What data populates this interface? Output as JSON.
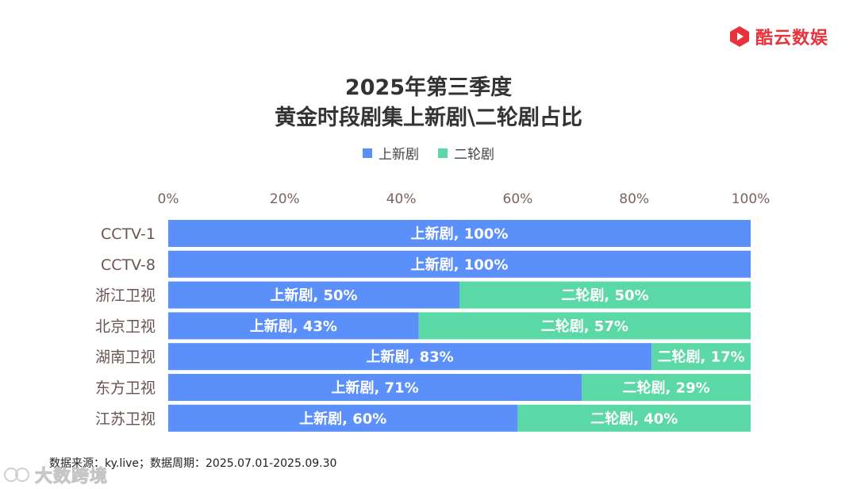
{
  "brand": {
    "name": "酷云数娱",
    "color": "#e8333c"
  },
  "title_line1": "2025年第三季度",
  "title_line2": "黄金时段剧集上新剧\\二轮剧占比",
  "legend": [
    {
      "label": "上新剧",
      "color": "#5b8ff9"
    },
    {
      "label": "二轮剧",
      "color": "#5ad8a6"
    }
  ],
  "source": "数据来源：ky.live；数据周期：2025.07.01-2025.09.30",
  "watermark": "大数跨境",
  "chart_data": {
    "type": "bar",
    "orientation": "horizontal",
    "stacked": true,
    "percent": true,
    "title": "2025年第三季度 黄金时段剧集上新剧\\二轮剧占比",
    "xlim": [
      0,
      100
    ],
    "xticks": [
      "0%",
      "20%",
      "40%",
      "60%",
      "80%",
      "100%"
    ],
    "categories": [
      "CCTV-1",
      "CCTV-8",
      "浙江卫视",
      "北京卫视",
      "湖南卫视",
      "东方卫视",
      "江苏卫视"
    ],
    "series": [
      {
        "name": "上新剧",
        "color": "#5b8ff9",
        "values": [
          100,
          100,
          50,
          43,
          83,
          71,
          60
        ],
        "labels": [
          "上新剧, 100%",
          "上新剧, 100%",
          "上新剧, 50%",
          "上新剧, 43%",
          "上新剧, 83%",
          "上新剧, 71%",
          "上新剧, 60%"
        ]
      },
      {
        "name": "二轮剧",
        "color": "#5ad8a6",
        "values": [
          0,
          0,
          50,
          57,
          17,
          29,
          40
        ],
        "labels": [
          "",
          "",
          "二轮剧, 50%",
          "二轮剧, 57%",
          "二轮剧, 17%",
          "二轮剧, 29%",
          "二轮剧, 40%"
        ]
      }
    ],
    "legend_position": "top-center",
    "grid": false
  }
}
